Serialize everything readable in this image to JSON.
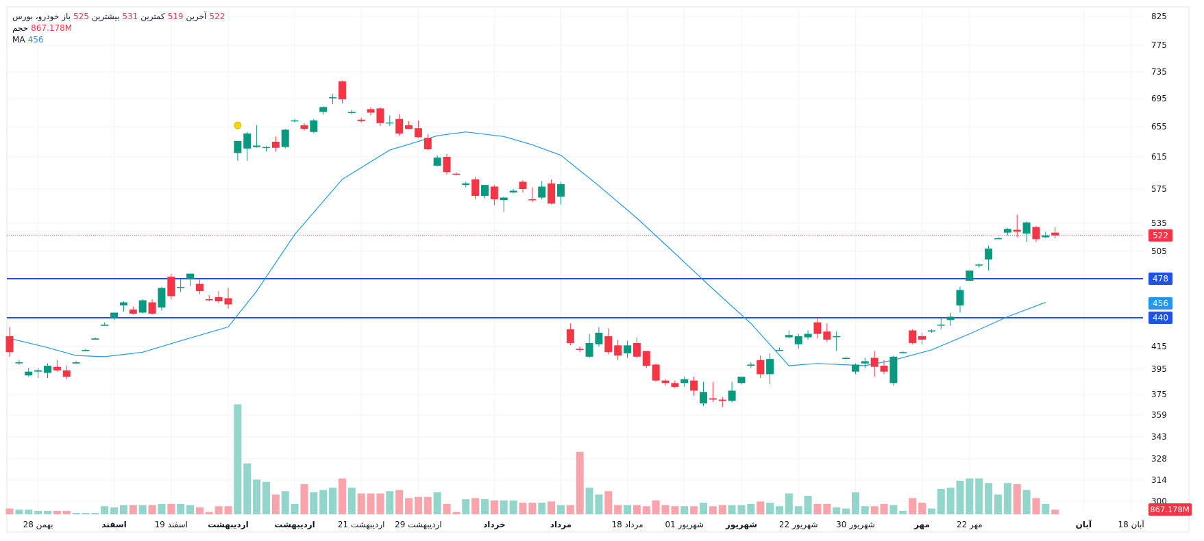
{
  "legend": {
    "symbol": "خودرو، بورس",
    "open_label": "باز",
    "open": "525",
    "high_label": "بیشترین",
    "high": "531",
    "low_label": "کمترین",
    "low": "519",
    "close_label": "آخرین",
    "close": "522",
    "volume_label": "حجم",
    "volume": "867.178M",
    "ma_label": "MA",
    "ma_value": "456"
  },
  "colors": {
    "up": "#089981",
    "down": "#f23645",
    "up_vol": "#92d5ca",
    "down_vol": "#f9a3aa",
    "ma": "#2196f3",
    "hline": "#1e53e5",
    "grid": "#f0f3fa"
  },
  "chart_data": {
    "type": "candlestick",
    "price_ticks": [
      "825",
      "775",
      "735",
      "695",
      "655",
      "615",
      "575",
      "535",
      "505",
      "415",
      "395",
      "375",
      "359",
      "343",
      "328",
      "314",
      "300"
    ],
    "x_labels": [
      {
        "i": 3,
        "text": "28 بهمن",
        "bold": false
      },
      {
        "i": 11,
        "text": "اسفند",
        "bold": true
      },
      {
        "i": 17,
        "text": "19 اسفند",
        "bold": false
      },
      {
        "i": 23,
        "text": "اردیبهشت",
        "bold": true
      },
      {
        "i": 30,
        "text": "اردیبهشت",
        "bold": true
      },
      {
        "i": 37,
        "text": "21 اردیبهشت",
        "bold": false
      },
      {
        "i": 43,
        "text": "29 اردیبهشت",
        "bold": false
      },
      {
        "i": 51,
        "text": "خرداد",
        "bold": true
      },
      {
        "i": 58,
        "text": "مرداد",
        "bold": true
      },
      {
        "i": 65,
        "text": "18 مرداد",
        "bold": false
      },
      {
        "i": 71,
        "text": "01 شهریور",
        "bold": false
      },
      {
        "i": 77,
        "text": "شهریور",
        "bold": true
      },
      {
        "i": 83,
        "text": "22 شهریور",
        "bold": false
      },
      {
        "i": 89,
        "text": "30 شهریور",
        "bold": false
      },
      {
        "i": 96,
        "text": "مهر",
        "bold": true
      },
      {
        "i": 101,
        "text": "22 مهر",
        "bold": false
      },
      {
        "i": 113,
        "text": "آبان",
        "bold": true
      },
      {
        "i": 118,
        "text": "18 آبان",
        "bold": false
      }
    ],
    "candles": [
      {
        "o": 424,
        "h": 432,
        "l": 406,
        "c": 410,
        "v": 5
      },
      {
        "o": 401,
        "h": 403,
        "l": 399,
        "c": 401,
        "v": 4
      },
      {
        "o": 390,
        "h": 396,
        "l": 389,
        "c": 393,
        "v": 4
      },
      {
        "o": 393,
        "h": 396,
        "l": 388,
        "c": 394,
        "v": 3
      },
      {
        "o": 392,
        "h": 400,
        "l": 388,
        "c": 398,
        "v": 3
      },
      {
        "o": 397,
        "h": 403,
        "l": 393,
        "c": 394,
        "v": 3
      },
      {
        "o": 394,
        "h": 398,
        "l": 387,
        "c": 389,
        "v": 3
      },
      {
        "o": 400,
        "h": 402,
        "l": 400,
        "c": 401,
        "v": 1
      },
      {
        "o": 411,
        "h": 413,
        "l": 411,
        "c": 412,
        "v": 1
      },
      {
        "o": 421,
        "h": 423,
        "l": 421,
        "c": 422,
        "v": 1
      },
      {
        "o": 433,
        "h": 436,
        "l": 433,
        "c": 434,
        "v": 7
      },
      {
        "o": 440,
        "h": 445,
        "l": 438,
        "c": 445,
        "v": 6
      },
      {
        "o": 452,
        "h": 456,
        "l": 446,
        "c": 455,
        "v": 8
      },
      {
        "o": 448,
        "h": 451,
        "l": 443,
        "c": 444,
        "v": 8
      },
      {
        "o": 445,
        "h": 458,
        "l": 444,
        "c": 457,
        "v": 8
      },
      {
        "o": 455,
        "h": 458,
        "l": 443,
        "c": 444,
        "v": 8
      },
      {
        "o": 450,
        "h": 470,
        "l": 447,
        "c": 469,
        "v": 9
      },
      {
        "o": 480,
        "h": 483,
        "l": 458,
        "c": 461,
        "v": 9
      },
      {
        "o": 469,
        "h": 478,
        "l": 465,
        "c": 470,
        "v": 9
      },
      {
        "o": 478,
        "h": 482,
        "l": 471,
        "c": 483,
        "v": 8
      },
      {
        "o": 473,
        "h": 477,
        "l": 463,
        "c": 466,
        "v": 6
      },
      {
        "o": 458,
        "h": 462,
        "l": 456,
        "c": 457,
        "v": 2
      },
      {
        "o": 460,
        "h": 466,
        "l": 454,
        "c": 456,
        "v": 7
      },
      {
        "o": 459,
        "h": 469,
        "l": 449,
        "c": 453,
        "v": 7
      },
      {
        "o": 620,
        "h": 633,
        "l": 610,
        "c": 636,
        "v": 95
      },
      {
        "o": 626,
        "h": 648,
        "l": 610,
        "c": 646,
        "v": 44
      },
      {
        "o": 628,
        "h": 657,
        "l": 627,
        "c": 630,
        "v": 30
      },
      {
        "o": 627,
        "h": 629,
        "l": 622,
        "c": 628,
        "v": 28
      },
      {
        "o": 635,
        "h": 642,
        "l": 622,
        "c": 627,
        "v": 17
      },
      {
        "o": 628,
        "h": 652,
        "l": 626,
        "c": 651,
        "v": 20
      },
      {
        "o": 663,
        "h": 666,
        "l": 661,
        "c": 664,
        "v": 9
      },
      {
        "o": 657,
        "h": 660,
        "l": 650,
        "c": 652,
        "v": 26
      },
      {
        "o": 648,
        "h": 666,
        "l": 646,
        "c": 664,
        "v": 19
      },
      {
        "o": 676,
        "h": 684,
        "l": 672,
        "c": 683,
        "v": 21
      },
      {
        "o": 696,
        "h": 702,
        "l": 687,
        "c": 697,
        "v": 23
      },
      {
        "o": 721,
        "h": 722,
        "l": 688,
        "c": 694,
        "v": 31
      },
      {
        "o": 675,
        "h": 679,
        "l": 673,
        "c": 676,
        "v": 23
      },
      {
        "o": 665,
        "h": 668,
        "l": 661,
        "c": 663,
        "v": 18
      },
      {
        "o": 680,
        "h": 683,
        "l": 671,
        "c": 675,
        "v": 18
      },
      {
        "o": 681,
        "h": 683,
        "l": 656,
        "c": 660,
        "v": 18
      },
      {
        "o": 661,
        "h": 671,
        "l": 656,
        "c": 661,
        "v": 20
      },
      {
        "o": 666,
        "h": 673,
        "l": 643,
        "c": 646,
        "v": 21
      },
      {
        "o": 657,
        "h": 663,
        "l": 652,
        "c": 652,
        "v": 14
      },
      {
        "o": 653,
        "h": 664,
        "l": 640,
        "c": 641,
        "v": 15
      },
      {
        "o": 640,
        "h": 645,
        "l": 624,
        "c": 625,
        "v": 15
      },
      {
        "o": 604,
        "h": 617,
        "l": 603,
        "c": 614,
        "v": 19
      },
      {
        "o": 615,
        "h": 619,
        "l": 593,
        "c": 596,
        "v": 9
      },
      {
        "o": 594,
        "h": 596,
        "l": 592,
        "c": 593,
        "v": 2
      },
      {
        "o": 580,
        "h": 584,
        "l": 577,
        "c": 582,
        "v": 13
      },
      {
        "o": 587,
        "h": 590,
        "l": 563,
        "c": 567,
        "v": 14
      },
      {
        "o": 567,
        "h": 579,
        "l": 564,
        "c": 580,
        "v": 13
      },
      {
        "o": 578,
        "h": 580,
        "l": 556,
        "c": 563,
        "v": 12
      },
      {
        "o": 562,
        "h": 566,
        "l": 548,
        "c": 565,
        "v": 12
      },
      {
        "o": 571,
        "h": 575,
        "l": 570,
        "c": 573,
        "v": 12
      },
      {
        "o": 584,
        "h": 586,
        "l": 571,
        "c": 575,
        "v": 10
      },
      {
        "o": 563,
        "h": 577,
        "l": 560,
        "c": 562,
        "v": 10
      },
      {
        "o": 565,
        "h": 585,
        "l": 563,
        "c": 578,
        "v": 10
      },
      {
        "o": 582,
        "h": 587,
        "l": 557,
        "c": 558,
        "v": 11
      },
      {
        "o": 566,
        "h": 584,
        "l": 557,
        "c": 581,
        "v": 8
      },
      {
        "o": 430,
        "h": 435,
        "l": 416,
        "c": 418,
        "v": 8
      },
      {
        "o": 413,
        "h": 415,
        "l": 410,
        "c": 412,
        "v": 54
      },
      {
        "o": 406,
        "h": 426,
        "l": 405,
        "c": 418,
        "v": 23
      },
      {
        "o": 417,
        "h": 432,
        "l": 415,
        "c": 427,
        "v": 17
      },
      {
        "o": 424,
        "h": 431,
        "l": 408,
        "c": 410,
        "v": 20
      },
      {
        "o": 416,
        "h": 421,
        "l": 403,
        "c": 407,
        "v": 8
      },
      {
        "o": 409,
        "h": 420,
        "l": 405,
        "c": 416,
        "v": 8
      },
      {
        "o": 418,
        "h": 423,
        "l": 405,
        "c": 406,
        "v": 8
      },
      {
        "o": 411,
        "h": 411,
        "l": 396,
        "c": 398,
        "v": 7
      },
      {
        "o": 399,
        "h": 400,
        "l": 385,
        "c": 386,
        "v": 12
      },
      {
        "o": 386,
        "h": 387,
        "l": 382,
        "c": 384,
        "v": 8
      },
      {
        "o": 384,
        "h": 386,
        "l": 380,
        "c": 381,
        "v": 7
      },
      {
        "o": 384,
        "h": 389,
        "l": 381,
        "c": 387,
        "v": 7
      },
      {
        "o": 386,
        "h": 389,
        "l": 374,
        "c": 378,
        "v": 7
      },
      {
        "o": 368,
        "h": 385,
        "l": 366,
        "c": 377,
        "v": 10
      },
      {
        "o": 372,
        "h": 385,
        "l": 369,
        "c": 371,
        "v": 7
      },
      {
        "o": 371,
        "h": 373,
        "l": 365,
        "c": 370,
        "v": 8
      },
      {
        "o": 370,
        "h": 385,
        "l": 369,
        "c": 378,
        "v": 8
      },
      {
        "o": 384,
        "h": 389,
        "l": 383,
        "c": 389,
        "v": 8
      },
      {
        "o": 398,
        "h": 401,
        "l": 396,
        "c": 399,
        "v": 9
      },
      {
        "o": 403,
        "h": 407,
        "l": 388,
        "c": 391,
        "v": 11
      },
      {
        "o": 391,
        "h": 409,
        "l": 383,
        "c": 404,
        "v": 10
      },
      {
        "o": 412,
        "h": 414,
        "l": 411,
        "c": 412,
        "v": 7
      },
      {
        "o": 423,
        "h": 429,
        "l": 422,
        "c": 425,
        "v": 18
      },
      {
        "o": 417,
        "h": 426,
        "l": 413,
        "c": 424,
        "v": 7
      },
      {
        "o": 423,
        "h": 429,
        "l": 421,
        "c": 426,
        "v": 16
      },
      {
        "o": 436,
        "h": 440,
        "l": 422,
        "c": 426,
        "v": 9
      },
      {
        "o": 428,
        "h": 435,
        "l": 419,
        "c": 421,
        "v": 9
      },
      {
        "o": 424,
        "h": 428,
        "l": 411,
        "c": 424,
        "v": 6
      },
      {
        "o": 405,
        "h": 406,
        "l": 405,
        "c": 405,
        "v": 5
      },
      {
        "o": 393,
        "h": 400,
        "l": 391,
        "c": 399,
        "v": 19
      },
      {
        "o": 400,
        "h": 405,
        "l": 396,
        "c": 402,
        "v": 7
      },
      {
        "o": 405,
        "h": 411,
        "l": 389,
        "c": 397,
        "v": 7
      },
      {
        "o": 398,
        "h": 403,
        "l": 391,
        "c": 393,
        "v": 9
      },
      {
        "o": 384,
        "h": 407,
        "l": 382,
        "c": 406,
        "v": 8
      },
      {
        "o": 409,
        "h": 411,
        "l": 409,
        "c": 410,
        "v": 3
      },
      {
        "o": 429,
        "h": 430,
        "l": 417,
        "c": 418,
        "v": 14
      },
      {
        "o": 424,
        "h": 427,
        "l": 417,
        "c": 421,
        "v": 10
      },
      {
        "o": 428,
        "h": 430,
        "l": 427,
        "c": 429,
        "v": 5
      },
      {
        "o": 434,
        "h": 440,
        "l": 430,
        "c": 434,
        "v": 22
      },
      {
        "o": 438,
        "h": 445,
        "l": 433,
        "c": 441,
        "v": 23
      },
      {
        "o": 452,
        "h": 470,
        "l": 445,
        "c": 467,
        "v": 29
      },
      {
        "o": 476,
        "h": 486,
        "l": 477,
        "c": 486,
        "v": 31
      },
      {
        "o": 492,
        "h": 493,
        "l": 489,
        "c": 492,
        "v": 31
      },
      {
        "o": 497,
        "h": 511,
        "l": 486,
        "c": 508,
        "v": 27
      },
      {
        "o": 519,
        "h": 520,
        "l": 518,
        "c": 519,
        "v": 17
      },
      {
        "o": 525,
        "h": 530,
        "l": 522,
        "c": 529,
        "v": 27
      },
      {
        "o": 528,
        "h": 545,
        "l": 520,
        "c": 526,
        "v": 26
      },
      {
        "o": 524,
        "h": 537,
        "l": 515,
        "c": 536,
        "v": 21
      },
      {
        "o": 531,
        "h": 532,
        "l": 515,
        "c": 518,
        "v": 14
      },
      {
        "o": 520,
        "h": 526,
        "l": 519,
        "c": 522,
        "v": 9
      },
      {
        "o": 525,
        "h": 531,
        "l": 519,
        "c": 522,
        "v": 4
      }
    ],
    "ma": [
      {
        "i": 0,
        "v": 422
      },
      {
        "i": 4,
        "v": 414
      },
      {
        "i": 7,
        "v": 407
      },
      {
        "i": 10,
        "v": 406
      },
      {
        "i": 14,
        "v": 410
      },
      {
        "i": 18,
        "v": 420
      },
      {
        "i": 23,
        "v": 432
      },
      {
        "i": 26,
        "v": 466
      },
      {
        "i": 30,
        "v": 523
      },
      {
        "i": 35,
        "v": 587
      },
      {
        "i": 40,
        "v": 624
      },
      {
        "i": 45,
        "v": 643
      },
      {
        "i": 48,
        "v": 648
      },
      {
        "i": 52,
        "v": 642
      },
      {
        "i": 55,
        "v": 631
      },
      {
        "i": 58,
        "v": 617
      },
      {
        "i": 62,
        "v": 579
      },
      {
        "i": 66,
        "v": 541
      },
      {
        "i": 70,
        "v": 503
      },
      {
        "i": 74,
        "v": 468
      },
      {
        "i": 78,
        "v": 435
      },
      {
        "i": 82,
        "v": 398
      },
      {
        "i": 85,
        "v": 400
      },
      {
        "i": 90,
        "v": 398
      },
      {
        "i": 93,
        "v": 403
      },
      {
        "i": 97,
        "v": 412
      },
      {
        "i": 101,
        "v": 426
      },
      {
        "i": 105,
        "v": 441
      },
      {
        "i": 109,
        "v": 455
      }
    ],
    "hlines": [
      {
        "value": 478,
        "label": "478"
      },
      {
        "value": 440,
        "label": "440"
      }
    ],
    "last_price": {
      "value": 522,
      "label": "522"
    },
    "ma_badge": {
      "value": 456,
      "label": "456"
    },
    "volume_badge": "867.178M",
    "marker_index": 24
  }
}
